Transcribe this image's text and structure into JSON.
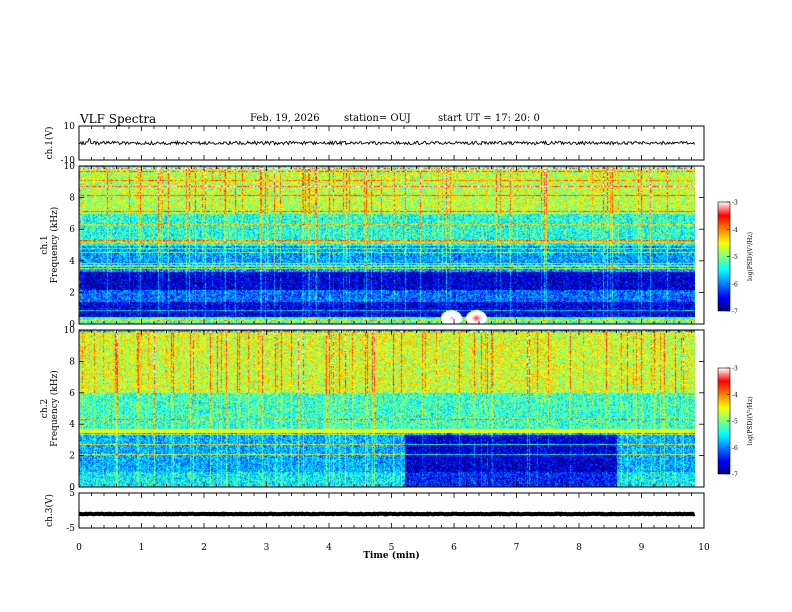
{
  "header": {
    "title": "VLF Spectra",
    "date": "Feb. 19, 2026",
    "station": "station= OUJ",
    "start": "start  UT  =   17: 20: 0"
  },
  "chart_data": [
    {
      "type": "line",
      "panel": "ch1-waveform",
      "ylabel": "ch.1(V)",
      "ylim": [
        -10,
        10
      ],
      "yticks": [
        "10",
        "-10"
      ],
      "xlim": [
        0,
        10
      ],
      "series": [
        {
          "level": 0.0,
          "noise_amplitude": 1.0,
          "spike_at_min": 0.17,
          "spike_value": 2.5
        }
      ]
    },
    {
      "type": "heatmap",
      "panel": "ch1-spectrogram",
      "ylabel": "ch.1\nFrequency (kHz)",
      "ylim": [
        0,
        10
      ],
      "yticks": [
        "0",
        "2",
        "4",
        "6",
        "8",
        "10"
      ],
      "xlim": [
        0,
        9.85
      ],
      "colorbar": {
        "label": "log(PSD)(V²/Hz)",
        "range": [
          -7,
          -3
        ],
        "ticks": [
          "-3",
          "-4",
          "-5",
          "-6",
          "-7"
        ]
      },
      "bands": [
        {
          "freq_khz": [
            0.0,
            0.5
          ],
          "log_psd": -5.3
        },
        {
          "freq_khz": [
            0.5,
            1.4
          ],
          "log_psd": -6.7
        },
        {
          "freq_khz": [
            1.4,
            2.2
          ],
          "log_psd": -6.2
        },
        {
          "freq_khz": [
            2.2,
            3.3
          ],
          "log_psd": -6.8
        },
        {
          "freq_khz": [
            3.3,
            5.0
          ],
          "log_psd": -6.0
        },
        {
          "freq_khz": [
            5.0,
            7.0
          ],
          "log_psd": -5.5
        },
        {
          "freq_khz": [
            7.0,
            10.0
          ],
          "log_psd": -4.9
        }
      ],
      "hot_spots": [
        {
          "time_min": 5.95,
          "freq_khz": 0.4,
          "log_psd": -3.2
        },
        {
          "time_min": 6.35,
          "freq_khz": 0.4,
          "log_psd": -3.4
        }
      ]
    },
    {
      "type": "heatmap",
      "panel": "ch2-spectrogram",
      "ylabel": "ch.2\nFrequency (kHz)",
      "ylim": [
        0,
        10
      ],
      "yticks": [
        "0",
        "2",
        "4",
        "6",
        "8",
        "10"
      ],
      "xlim": [
        0,
        9.85
      ],
      "colorbar": {
        "label": "log(PSD)(V²/Hz)",
        "range": [
          -7,
          -3
        ],
        "ticks": [
          "-3",
          "-4",
          "-5",
          "-6",
          "-7"
        ]
      },
      "bands": [
        {
          "freq_khz": [
            0.0,
            1.0
          ],
          "log_psd": -5.6
        },
        {
          "freq_khz": [
            1.0,
            3.6
          ],
          "log_psd": -5.9
        },
        {
          "freq_khz": [
            3.6,
            6.0
          ],
          "log_psd": -5.4
        },
        {
          "freq_khz": [
            6.0,
            10.0
          ],
          "log_psd": -4.8
        }
      ],
      "quiet_interval_min": [
        5.2,
        8.6
      ],
      "strong_line_khz": 3.6
    },
    {
      "type": "line",
      "panel": "ch3-waveform",
      "ylabel": "ch.3(V)",
      "ylim": [
        -5,
        5
      ],
      "yticks": [
        "5",
        "-5"
      ],
      "xlim": [
        0,
        10
      ],
      "series": [
        {
          "level": -1.0,
          "noise_amplitude": 0.1
        }
      ]
    }
  ],
  "x_axis": {
    "label": "Time  (min)",
    "ticks": [
      "0",
      "1",
      "2",
      "3",
      "4",
      "5",
      "6",
      "7",
      "8",
      "9",
      "10"
    ]
  },
  "colors": {
    "cb_stops": [
      "#00007f",
      "#0000ff",
      "#0080ff",
      "#00ffff",
      "#80ff80",
      "#ffff00",
      "#ff8000",
      "#ff0000",
      "#ffffff"
    ]
  }
}
